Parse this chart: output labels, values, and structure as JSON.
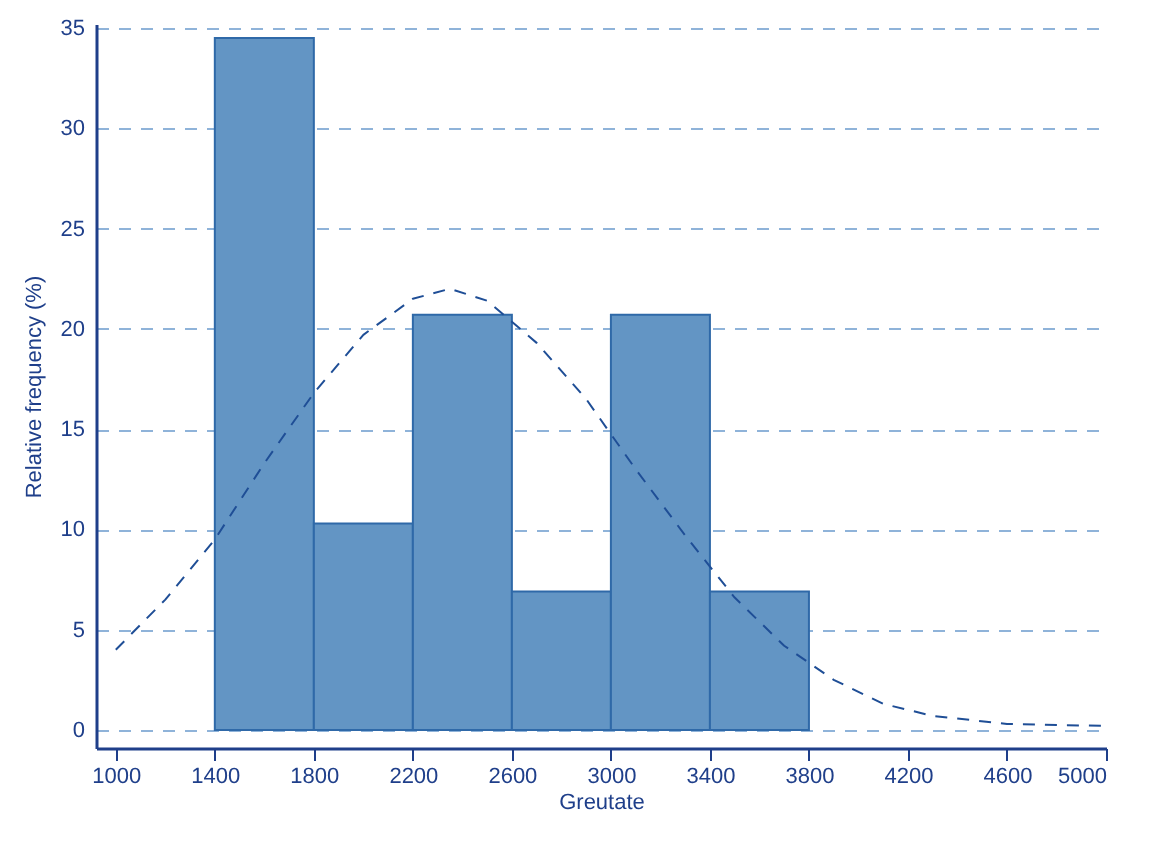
{
  "chart_data": {
    "type": "histogram",
    "xlabel": "Greutate",
    "ylabel": "Relative frequency (%)",
    "bins": [
      1400,
      1800,
      2200,
      2600,
      3000,
      3400,
      3800
    ],
    "values": [
      34.5,
      10.3,
      20.7,
      6.9,
      20.7,
      6.9
    ],
    "color": "#6395c4",
    "series": [
      {
        "type": "line",
        "color": "#1f4e96",
        "line_style": "dashed",
        "x": [
          1000,
          1200,
          1400,
          1600,
          1800,
          2000,
          2200,
          2350,
          2500,
          2700,
          2900,
          3100,
          3300,
          3500,
          3700,
          3900,
          4100,
          4300,
          4600,
          5000
        ],
        "values": [
          4,
          6.5,
          9.5,
          13.3,
          16.8,
          19.7,
          21.5,
          22,
          21.4,
          19.3,
          16.5,
          13,
          9.7,
          6.6,
          4.2,
          2.5,
          1.3,
          0.7,
          0.3,
          0.2
        ]
      }
    ],
    "xlim": [
      920,
      5000
    ],
    "xticks": [
      1000,
      1400,
      1800,
      2200,
      2600,
      3000,
      3400,
      3800,
      4200,
      4600,
      5000
    ],
    "ylim": [
      -0.9,
      35.2
    ],
    "yticks": [
      0,
      5,
      10,
      15,
      20,
      25,
      30,
      35
    ],
    "grid": "y"
  }
}
